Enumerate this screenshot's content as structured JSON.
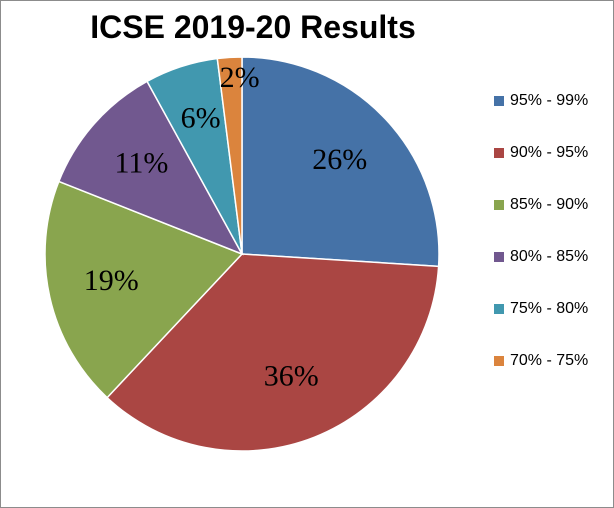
{
  "chart_data": {
    "type": "pie",
    "title": "ICSE 2019-20 Results",
    "categories": [
      "95% - 99%",
      "90% - 95%",
      "85% - 90%",
      "80% - 85%",
      "75% - 80%",
      "70% - 75%"
    ],
    "values": [
      26,
      36,
      19,
      11,
      6,
      2
    ],
    "labels": [
      "26%",
      "36%",
      "19%",
      "11%",
      "6%",
      "2%"
    ],
    "colors": [
      "#4572a7",
      "#aa4643",
      "#89a54e",
      "#71588f",
      "#4198af",
      "#db843d"
    ],
    "legend": "right"
  }
}
